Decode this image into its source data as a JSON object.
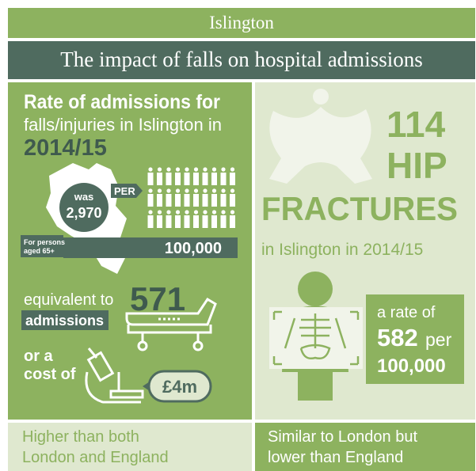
{
  "header": {
    "title": "Islington",
    "subtitle": "The impact of falls on hospital admissions"
  },
  "left": {
    "heading": "Rate of admissions for",
    "subheading": "falls/injuries in Islington in",
    "year": "2014/15",
    "was": "was",
    "rate": "2,970",
    "per": "PER",
    "population": "100,000",
    "population_note": [
      "For persons",
      "aged 65+"
    ],
    "equivalent": "equivalent to",
    "admissions_count": "571",
    "admissions": "admissions",
    "cost_intro": [
      "or a",
      "cost of"
    ],
    "cost": "£4m",
    "comparison": [
      "Higher than both",
      "London and England"
    ]
  },
  "right": {
    "count": "114",
    "hip": "HIP",
    "fractures": "FRACTURES",
    "place": "in Islington in 2014/15",
    "rate_intro": "a rate of",
    "rate": "582",
    "per": "per",
    "population": "100,000",
    "comparison": [
      "Similar to London but",
      "lower than England"
    ]
  }
}
